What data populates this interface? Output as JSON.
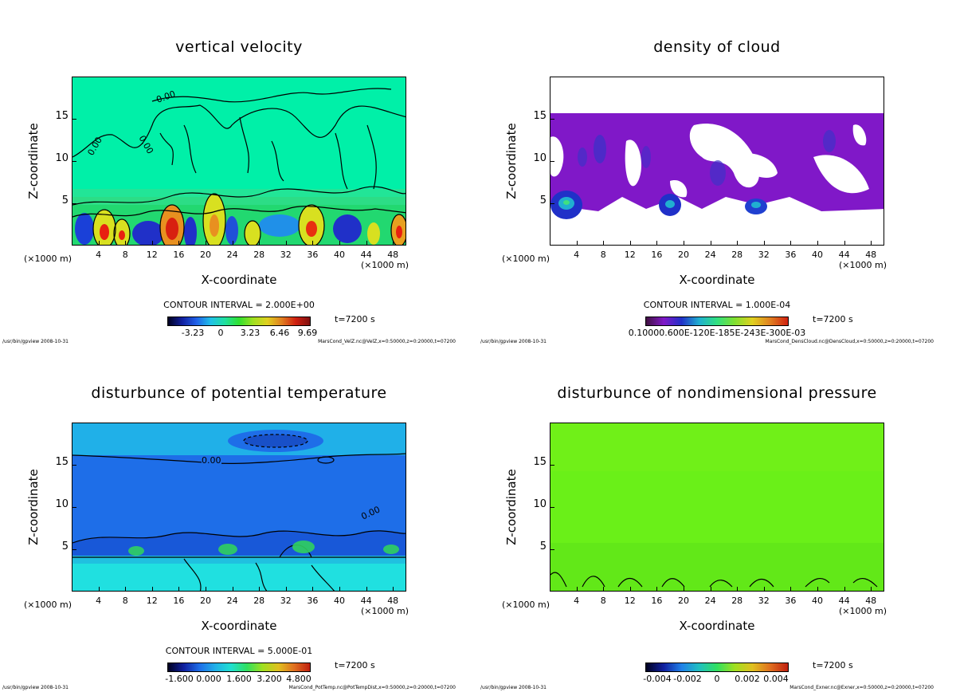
{
  "chart_data": [
    {
      "type": "heatmap",
      "title": "vertical velocity",
      "xlabel": "X-coordinate",
      "ylabel": "Z-coordinate",
      "x_unit_left": "(×1000 m)",
      "x_unit_right": "(×1000 m)",
      "xlim": [
        0,
        50
      ],
      "ylim": [
        0,
        20
      ],
      "x_ticks": [
        "4",
        "8",
        "12",
        "16",
        "20",
        "24",
        "28",
        "32",
        "36",
        "40",
        "44",
        "48"
      ],
      "y_ticks": [
        "5",
        "10",
        "15"
      ],
      "contour_interval": "CONTOUR INTERVAL = 2.000E+00",
      "colorbar_labels": [
        "-3.23",
        "0",
        "3.23",
        "6.46",
        "9.69"
      ],
      "contour_labels": [
        "0.00",
        "0.00",
        "0.00"
      ],
      "time": "t=7200 s",
      "footer_left": "/usr/bin/gpview   2008-10-31",
      "footer_right": "MarsCond_VelZ.nc@VelZ,x=0:50000,z=0:20000,t=07200",
      "background": "#00f0a8"
    },
    {
      "type": "heatmap",
      "title": "density of cloud",
      "xlabel": "X-coordinate",
      "ylabel": "Z-coordinate",
      "x_unit_left": "(×1000 m)",
      "x_unit_right": "(×1000 m)",
      "xlim": [
        0,
        50
      ],
      "ylim": [
        0,
        20
      ],
      "x_ticks": [
        "4",
        "8",
        "12",
        "16",
        "20",
        "24",
        "28",
        "32",
        "36",
        "40",
        "44",
        "48"
      ],
      "y_ticks": [
        "5",
        "10",
        "15"
      ],
      "contour_interval": "CONTOUR INTERVAL = 1.000E-04",
      "colorbar_labels": [
        "0.10000.600E-120E-185E-243E-300E-03"
      ],
      "time": "t=7200 s",
      "footer_left": "/usr/bin/gpview   2008-10-31",
      "footer_right": "MarsCond_DensCloud.nc@DensCloud,x=0:50000,z=0:20000,t=07200",
      "background": "#ffffff"
    },
    {
      "type": "heatmap",
      "title": "disturbunce of potential temperature",
      "xlabel": "X-coordinate",
      "ylabel": "Z-coordinate",
      "x_unit_left": "(×1000 m)",
      "x_unit_right": "(×1000 m)",
      "xlim": [
        0,
        50
      ],
      "ylim": [
        0,
        20
      ],
      "x_ticks": [
        "4",
        "8",
        "12",
        "16",
        "20",
        "24",
        "28",
        "32",
        "36",
        "40",
        "44",
        "48"
      ],
      "y_ticks": [
        "5",
        "10",
        "15"
      ],
      "contour_interval": "CONTOUR INTERVAL = 5.000E-01",
      "colorbar_labels": [
        "-1.600",
        "0.000",
        "1.600",
        "3.200",
        "4.800"
      ],
      "contour_labels": [
        "0.00",
        "0.00"
      ],
      "time": "t=7200 s",
      "footer_left": "/usr/bin/gpview   2008-10-31",
      "footer_right": "MarsCond_PotTemp.nc@PotTempDist,x=0:50000,z=0:20000,t=07200",
      "background": "#1e6ee8"
    },
    {
      "type": "heatmap",
      "title": "disturbunce of nondimensional pressure",
      "xlabel": "X-coordinate",
      "ylabel": "Z-coordinate",
      "x_unit_left": "(×1000 m)",
      "x_unit_right": "(×1000 m)",
      "xlim": [
        0,
        50
      ],
      "ylim": [
        0,
        20
      ],
      "x_ticks": [
        "4",
        "8",
        "12",
        "16",
        "20",
        "24",
        "28",
        "32",
        "36",
        "40",
        "44",
        "48"
      ],
      "y_ticks": [
        "5",
        "10",
        "15"
      ],
      "contour_interval": "",
      "colorbar_labels": [
        "-0.004",
        "-0.002",
        "0",
        "0.002",
        "0.004"
      ],
      "time": "t=7200 s",
      "footer_left": "/usr/bin/gpview   2008-10-31",
      "footer_right": "MarsCond_Exner.nc@Exner,x=0:50000,z=0:20000,t=07200",
      "background": "#6af018"
    }
  ]
}
